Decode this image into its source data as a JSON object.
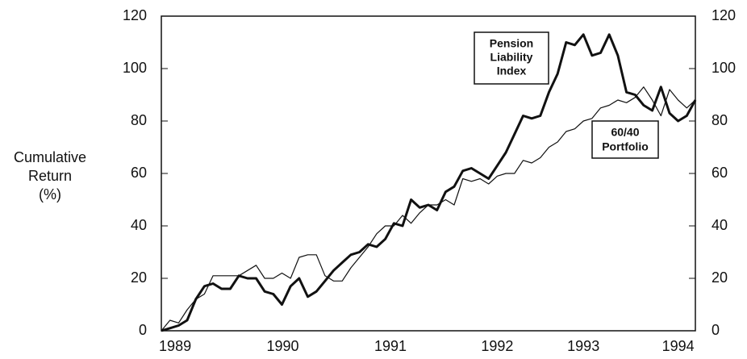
{
  "chart_data": {
    "type": "line",
    "ylabel": [
      "Cumulative",
      "Return",
      "(%)"
    ],
    "annotations": [
      [
        "Pension",
        "Liability",
        "Index"
      ],
      [
        "60/40",
        "Portfolio"
      ]
    ],
    "xlim": [
      0,
      62
    ],
    "xticks": [
      {
        "value": 1.6,
        "label": "1989"
      },
      {
        "value": 14.1,
        "label": "1990"
      },
      {
        "value": 26.6,
        "label": "1991"
      },
      {
        "value": 39,
        "label": "1992"
      },
      {
        "value": 49,
        "label": "1993"
      },
      {
        "value": 60,
        "label": "1994"
      }
    ],
    "ylim": [
      0,
      120
    ],
    "yticks": [
      0,
      20,
      40,
      60,
      80,
      100,
      120
    ],
    "y2lim": [
      0,
      120
    ],
    "y2ticks": [
      0,
      20,
      40,
      60,
      80,
      100,
      120
    ],
    "series": [
      {
        "name": "Pension Liability Index",
        "color": "#111",
        "width": 3,
        "values": [
          0,
          1,
          2,
          4,
          12,
          17,
          18,
          16,
          16,
          21,
          20,
          20,
          15,
          14,
          10,
          17,
          20,
          13,
          15,
          19,
          23,
          26,
          29,
          30,
          33,
          32,
          35,
          41,
          40,
          50,
          47,
          48,
          46,
          53,
          55,
          61,
          62,
          60,
          58,
          63,
          68,
          75,
          82,
          81,
          82,
          91,
          98,
          110,
          109,
          113,
          105,
          106,
          113,
          105,
          91,
          90,
          86,
          84,
          93,
          83,
          80,
          82,
          88
        ]
      },
      {
        "name": "60/40 Portfolio",
        "color": "#111",
        "width": 1.2,
        "values": [
          0,
          4,
          3,
          8,
          12,
          14,
          21,
          21,
          21,
          21,
          23,
          25,
          20,
          20,
          22,
          20,
          28,
          29,
          29,
          21,
          19,
          19,
          24,
          28,
          32,
          37,
          40,
          40,
          44,
          41,
          45,
          48,
          48,
          50,
          48,
          58,
          57,
          58,
          56,
          59,
          60,
          60,
          65,
          64,
          66,
          70,
          72,
          76,
          77,
          80,
          81,
          85,
          86,
          88,
          87,
          89,
          93,
          88,
          82,
          92,
          88,
          85,
          88
        ]
      }
    ]
  }
}
